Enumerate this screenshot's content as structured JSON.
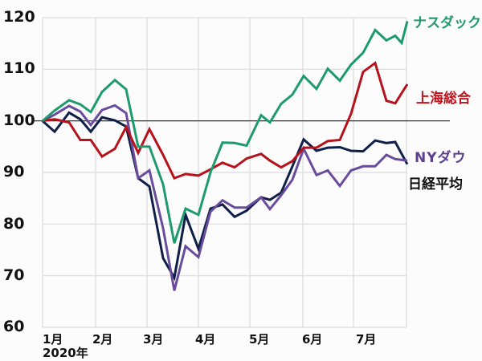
{
  "chart_data": {
    "type": "line",
    "title": "",
    "xlabel": "2020年",
    "ylabel": "",
    "ylim": [
      60,
      120
    ],
    "yticks": [
      60,
      70,
      80,
      90,
      100,
      110,
      120
    ],
    "xticks": [
      "1月",
      "2月",
      "3月",
      "4月",
      "5月",
      "6月",
      "7月"
    ],
    "x_year_label": "2020年",
    "baseline": 100,
    "grid": true,
    "legend_position": "inline-right",
    "series": [
      {
        "name": "ナスダック",
        "color": "#1e9b6e",
        "points": [
          [
            53,
            100
          ],
          [
            68,
            102
          ],
          [
            86,
            104
          ],
          [
            100,
            103.2
          ],
          [
            113,
            101.7
          ],
          [
            127,
            105.6
          ],
          [
            143,
            107.9
          ],
          [
            157,
            106.1
          ],
          [
            172,
            95
          ],
          [
            186,
            95
          ],
          [
            203,
            87.7
          ],
          [
            217,
            76.3
          ],
          [
            231,
            83
          ],
          [
            247,
            81.8
          ],
          [
            262,
            90
          ],
          [
            277,
            95.8
          ],
          [
            292,
            95.7
          ],
          [
            307,
            95.2
          ],
          [
            325,
            101.1
          ],
          [
            336,
            99.7
          ],
          [
            350,
            103.3
          ],
          [
            364,
            105.1
          ],
          [
            378,
            108.7
          ],
          [
            394,
            106.2
          ],
          [
            408,
            110.1
          ],
          [
            423,
            107.8
          ],
          [
            437,
            110.9
          ],
          [
            452,
            113.2
          ],
          [
            467,
            117.6
          ],
          [
            481,
            115.6
          ],
          [
            492,
            116.5
          ],
          [
            500,
            115.1
          ],
          [
            507,
            119.3
          ]
        ]
      },
      {
        "name": "上海総合",
        "color": "#b5121b",
        "points": [
          [
            53,
            100
          ],
          [
            68,
            100.3
          ],
          [
            86,
            99.7
          ],
          [
            100,
            96.3
          ],
          [
            113,
            96.3
          ],
          [
            127,
            93.1
          ],
          [
            143,
            94.6
          ],
          [
            157,
            98.8
          ],
          [
            172,
            93.8
          ],
          [
            186,
            98.4
          ],
          [
            203,
            93.4
          ],
          [
            217,
            88.9
          ],
          [
            231,
            89.7
          ],
          [
            247,
            89.4
          ],
          [
            262,
            90.6
          ],
          [
            277,
            91.9
          ],
          [
            292,
            91
          ],
          [
            307,
            92.7
          ],
          [
            325,
            93.6
          ],
          [
            336,
            92.3
          ],
          [
            350,
            91
          ],
          [
            364,
            92.2
          ],
          [
            378,
            94.8
          ],
          [
            394,
            94.8
          ],
          [
            408,
            96.1
          ],
          [
            423,
            96.3
          ],
          [
            437,
            101.4
          ],
          [
            452,
            109.5
          ],
          [
            467,
            111.2
          ],
          [
            481,
            103.9
          ],
          [
            492,
            103.4
          ],
          [
            507,
            107.1
          ]
        ]
      },
      {
        "name": "NYダウ",
        "color": "#6a4c9c",
        "points": [
          [
            53,
            100
          ],
          [
            68,
            101.2
          ],
          [
            86,
            102.9
          ],
          [
            100,
            101.8
          ],
          [
            113,
            99.2
          ],
          [
            127,
            102.1
          ],
          [
            143,
            103
          ],
          [
            157,
            101.5
          ],
          [
            172,
            88.9
          ],
          [
            186,
            90.4
          ],
          [
            203,
            79.2
          ],
          [
            217,
            67.1
          ],
          [
            231,
            75.7
          ],
          [
            247,
            73.6
          ],
          [
            262,
            82.4
          ],
          [
            277,
            84.6
          ],
          [
            292,
            83.2
          ],
          [
            307,
            83.2
          ],
          [
            325,
            85.2
          ],
          [
            336,
            82.9
          ],
          [
            350,
            85.6
          ],
          [
            364,
            88.6
          ],
          [
            378,
            94.6
          ],
          [
            394,
            89.5
          ],
          [
            408,
            90.4
          ],
          [
            423,
            87.4
          ],
          [
            437,
            90.4
          ],
          [
            452,
            91.2
          ],
          [
            467,
            91.2
          ],
          [
            481,
            93.4
          ],
          [
            492,
            92.6
          ],
          [
            507,
            92.3
          ]
        ]
      },
      {
        "name": "日経平均",
        "color": "#0f1f47",
        "points": [
          [
            53,
            100
          ],
          [
            68,
            97.9
          ],
          [
            86,
            101.6
          ],
          [
            100,
            100.3
          ],
          [
            113,
            97.9
          ],
          [
            127,
            100.7
          ],
          [
            143,
            100.1
          ],
          [
            157,
            98.9
          ],
          [
            172,
            88.9
          ],
          [
            186,
            87.3
          ],
          [
            203,
            73.4
          ],
          [
            217,
            69.6
          ],
          [
            231,
            81.8
          ],
          [
            247,
            75.2
          ],
          [
            262,
            83
          ],
          [
            277,
            83.8
          ],
          [
            292,
            81.4
          ],
          [
            307,
            82.6
          ],
          [
            325,
            85.2
          ],
          [
            336,
            84.7
          ],
          [
            350,
            86.1
          ],
          [
            364,
            91.2
          ],
          [
            378,
            96.4
          ],
          [
            394,
            94.2
          ],
          [
            408,
            94.8
          ],
          [
            423,
            94.9
          ],
          [
            437,
            94.2
          ],
          [
            452,
            94.1
          ],
          [
            467,
            96.2
          ],
          [
            481,
            95.7
          ],
          [
            492,
            95.9
          ],
          [
            507,
            91.6
          ]
        ]
      }
    ]
  },
  "legend": {
    "nasdaq": "ナスダック",
    "shanghai": "上海総合",
    "nydow": "NYダウ",
    "nikkei": "日経平均"
  },
  "colors": {
    "nasdaq": "#1e9b6e",
    "shanghai": "#b5121b",
    "nydow": "#6a4c9c",
    "nikkei": "#0f1f47",
    "grid": "#dcdcdc",
    "baseline": "#222222"
  }
}
